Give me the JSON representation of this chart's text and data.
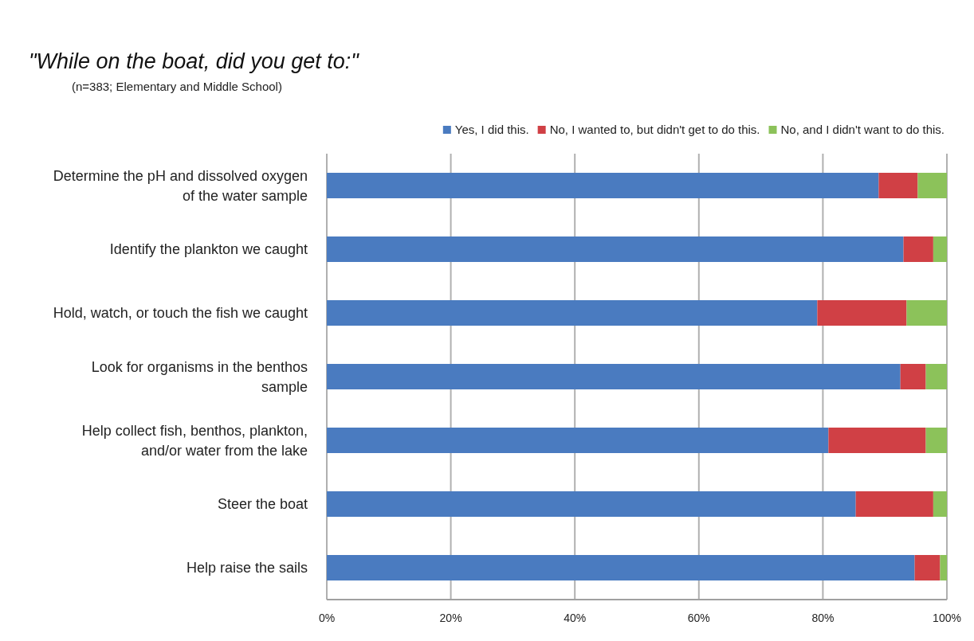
{
  "chart_data": {
    "type": "bar",
    "orientation": "horizontal",
    "stacked": true,
    "title": "\"While on the boat, did you get to:\"",
    "subtitle": "(n=383; Elementary and Middle School)",
    "categories": [
      "Determine the pH and dissolved oxygen of the water sample",
      "Identify the plankton we caught",
      "Hold, watch, or touch the fish we caught",
      "Look for organisms in the benthos sample",
      "Help collect fish, benthos, plankton, and/or water from the lake",
      "Steer the boat",
      "Help raise the sails"
    ],
    "series": [
      {
        "name": "Yes, I did this.",
        "color": "#4a7bc0",
        "values": [
          89,
          93,
          79.1,
          92.5,
          80.9,
          85.3,
          94.8
        ]
      },
      {
        "name": "No, I wanted to, but didn't get to do this.",
        "color": "#d04045",
        "values": [
          6.3,
          4.8,
          14.4,
          4.1,
          15.7,
          12.5,
          4.1
        ]
      },
      {
        "name": "No, and I didn't want to do this.",
        "color": "#8cc25a",
        "values": [
          4.7,
          2.2,
          6.5,
          3.4,
          3.4,
          2.2,
          1.1
        ]
      }
    ],
    "xlim": [
      0,
      100
    ],
    "xticks": [
      {
        "value": 0,
        "label": "0%"
      },
      {
        "value": 20,
        "label": "20%"
      },
      {
        "value": 40,
        "label": "40%"
      },
      {
        "value": 60,
        "label": "60%"
      },
      {
        "value": 80,
        "label": "80%"
      },
      {
        "value": 100,
        "label": "100%"
      }
    ],
    "grid": "x",
    "legend": "top"
  }
}
